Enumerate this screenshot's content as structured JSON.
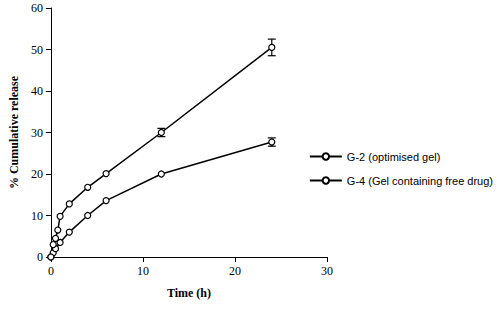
{
  "chart_data": {
    "type": "line",
    "x_label": "Time (h)",
    "y_label": "% Cumulative release",
    "xlim": [
      0,
      30
    ],
    "xticks": [
      0,
      10,
      20,
      30
    ],
    "ylim": [
      0,
      60
    ],
    "yticks": [
      0,
      10,
      20,
      30,
      40,
      50,
      60
    ],
    "grid": false,
    "legend": "right",
    "series": [
      {
        "name": "G-2 (optimised gel)",
        "color": "#000000",
        "marker": "circle",
        "line_style": "solid",
        "x": [
          0,
          0.25,
          0.5,
          1,
          2,
          4,
          6,
          12,
          24
        ],
        "values": [
          0,
          1,
          2,
          3.5,
          6,
          10,
          13.6,
          20,
          27.7
        ],
        "errors": [
          null,
          null,
          null,
          null,
          null,
          null,
          null,
          null,
          1.0
        ]
      },
      {
        "name": "G-4 (Gel containing free drug)",
        "color": "#000000",
        "marker": "circle",
        "line_style": "solid",
        "x": [
          0,
          0.25,
          0.5,
          0.75,
          1,
          2,
          4,
          6,
          12,
          24
        ],
        "values": [
          0,
          3,
          4.5,
          6.5,
          9.8,
          12.8,
          16.8,
          20.1,
          30,
          50.5
        ],
        "errors": [
          null,
          null,
          null,
          null,
          null,
          null,
          null,
          null,
          1.0,
          2.0
        ]
      }
    ]
  }
}
